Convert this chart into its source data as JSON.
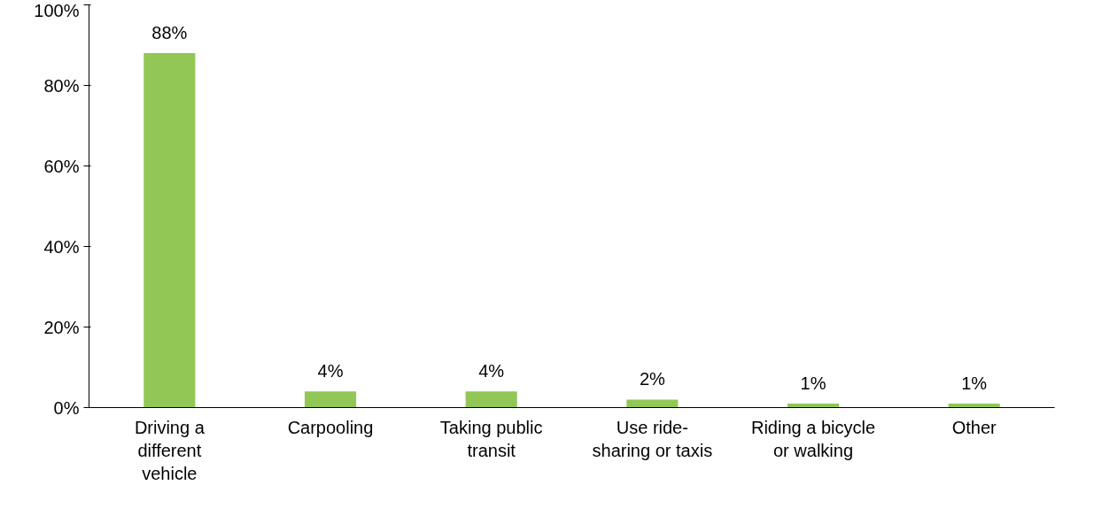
{
  "chart_data": {
    "type": "bar",
    "categories": [
      "Driving a\ndifferent\nvehicle",
      "Carpooling",
      "Taking public\ntransit",
      "Use ride-\nsharing or taxis",
      "Riding a bicycle\nor walking",
      "Other"
    ],
    "values": [
      88,
      4,
      4,
      2,
      1,
      1
    ],
    "value_labels": [
      "88%",
      "4%",
      "4%",
      "2%",
      "1%",
      "1%"
    ],
    "color": "#92c755",
    "ylim": [
      0,
      100
    ],
    "yticks": [
      {
        "value": 0,
        "label": "0%"
      },
      {
        "value": 20,
        "label": "20%"
      },
      {
        "value": 40,
        "label": "40%"
      },
      {
        "value": 60,
        "label": "60%"
      },
      {
        "value": 80,
        "label": "80%"
      },
      {
        "value": 100,
        "label": "100%"
      }
    ],
    "grid": false
  }
}
